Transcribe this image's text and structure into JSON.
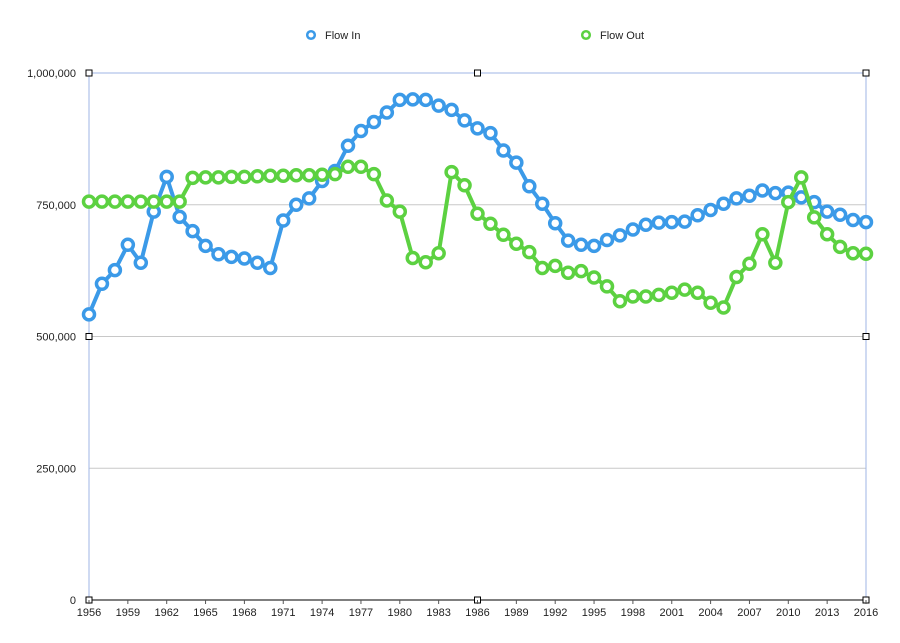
{
  "chart_data": {
    "type": "line",
    "title": "",
    "xlabel": "",
    "ylabel": "",
    "ylim": [
      0,
      1000000
    ],
    "yticks": [
      0,
      250000,
      500000,
      750000,
      1000000
    ],
    "ytick_labels": [
      "0",
      "250,000",
      "500,000",
      "750,000",
      "1,000,000"
    ],
    "xlim": [
      1956,
      2016
    ],
    "xticks": [
      1956,
      1959,
      1962,
      1965,
      1968,
      1971,
      1974,
      1977,
      1980,
      1983,
      1986,
      1989,
      1992,
      1995,
      1998,
      2001,
      2004,
      2007,
      2010,
      2013,
      2016
    ],
    "xtick_labels": [
      "1956",
      "1959",
      "1962",
      "1965",
      "1968",
      "1971",
      "1974",
      "1977",
      "1980",
      "1983",
      "1986",
      "1989",
      "1992",
      "1995",
      "1998",
      "2001",
      "2004",
      "2007",
      "2010",
      "2013",
      "2016"
    ],
    "grid": true,
    "legend_position": "top-center",
    "x": [
      1956,
      1957,
      1958,
      1959,
      1960,
      1961,
      1962,
      1963,
      1964,
      1965,
      1966,
      1967,
      1968,
      1969,
      1970,
      1971,
      1972,
      1973,
      1974,
      1975,
      1976,
      1977,
      1978,
      1979,
      1980,
      1981,
      1982,
      1983,
      1984,
      1985,
      1986,
      1987,
      1988,
      1989,
      1990,
      1991,
      1992,
      1993,
      1994,
      1995,
      1996,
      1997,
      1998,
      1999,
      2000,
      2001,
      2002,
      2003,
      2004,
      2005,
      2006,
      2007,
      2008,
      2009,
      2010,
      2011,
      2012,
      2013,
      2014,
      2015,
      2016
    ],
    "series": [
      {
        "name": "Flow In",
        "color": "#3b9ae8",
        "values": [
          542000,
          600000,
          626000,
          674000,
          640000,
          737000,
          803000,
          727000,
          700000,
          672000,
          656000,
          651000,
          648000,
          640000,
          630000,
          720000,
          750000,
          762000,
          795000,
          814000,
          862000,
          890000,
          907000,
          925000,
          949000,
          950000,
          949000,
          938000,
          930000,
          910000,
          895000,
          886000,
          853000,
          830000,
          785000,
          752000,
          715000,
          682000,
          674000,
          672000,
          683000,
          692000,
          703000,
          712000,
          716000,
          717000,
          718000,
          730000,
          740000,
          752000,
          762000,
          767000,
          777000,
          772000,
          773000,
          764000,
          755000,
          737000,
          731000,
          721000,
          717000
        ]
      },
      {
        "name": "Flow Out",
        "color": "#5cd141",
        "values": [
          756000,
          756000,
          756000,
          756000,
          756000,
          756000,
          756000,
          756000,
          801000,
          802000,
          802000,
          803000,
          803000,
          804000,
          805000,
          805000,
          806000,
          806000,
          807000,
          808000,
          822000,
          822000,
          808000,
          758000,
          737000,
          649000,
          641000,
          658000,
          812000,
          787000,
          733000,
          714000,
          693000,
          676000,
          660000,
          630000,
          634000,
          621000,
          624000,
          612000,
          595000,
          567000,
          576000,
          576000,
          579000,
          583000,
          589000,
          583000,
          564000,
          555000,
          613000,
          638000,
          694000,
          640000,
          755000,
          802000,
          726000,
          694000,
          670000,
          658000,
          657000
        ]
      }
    ]
  }
}
